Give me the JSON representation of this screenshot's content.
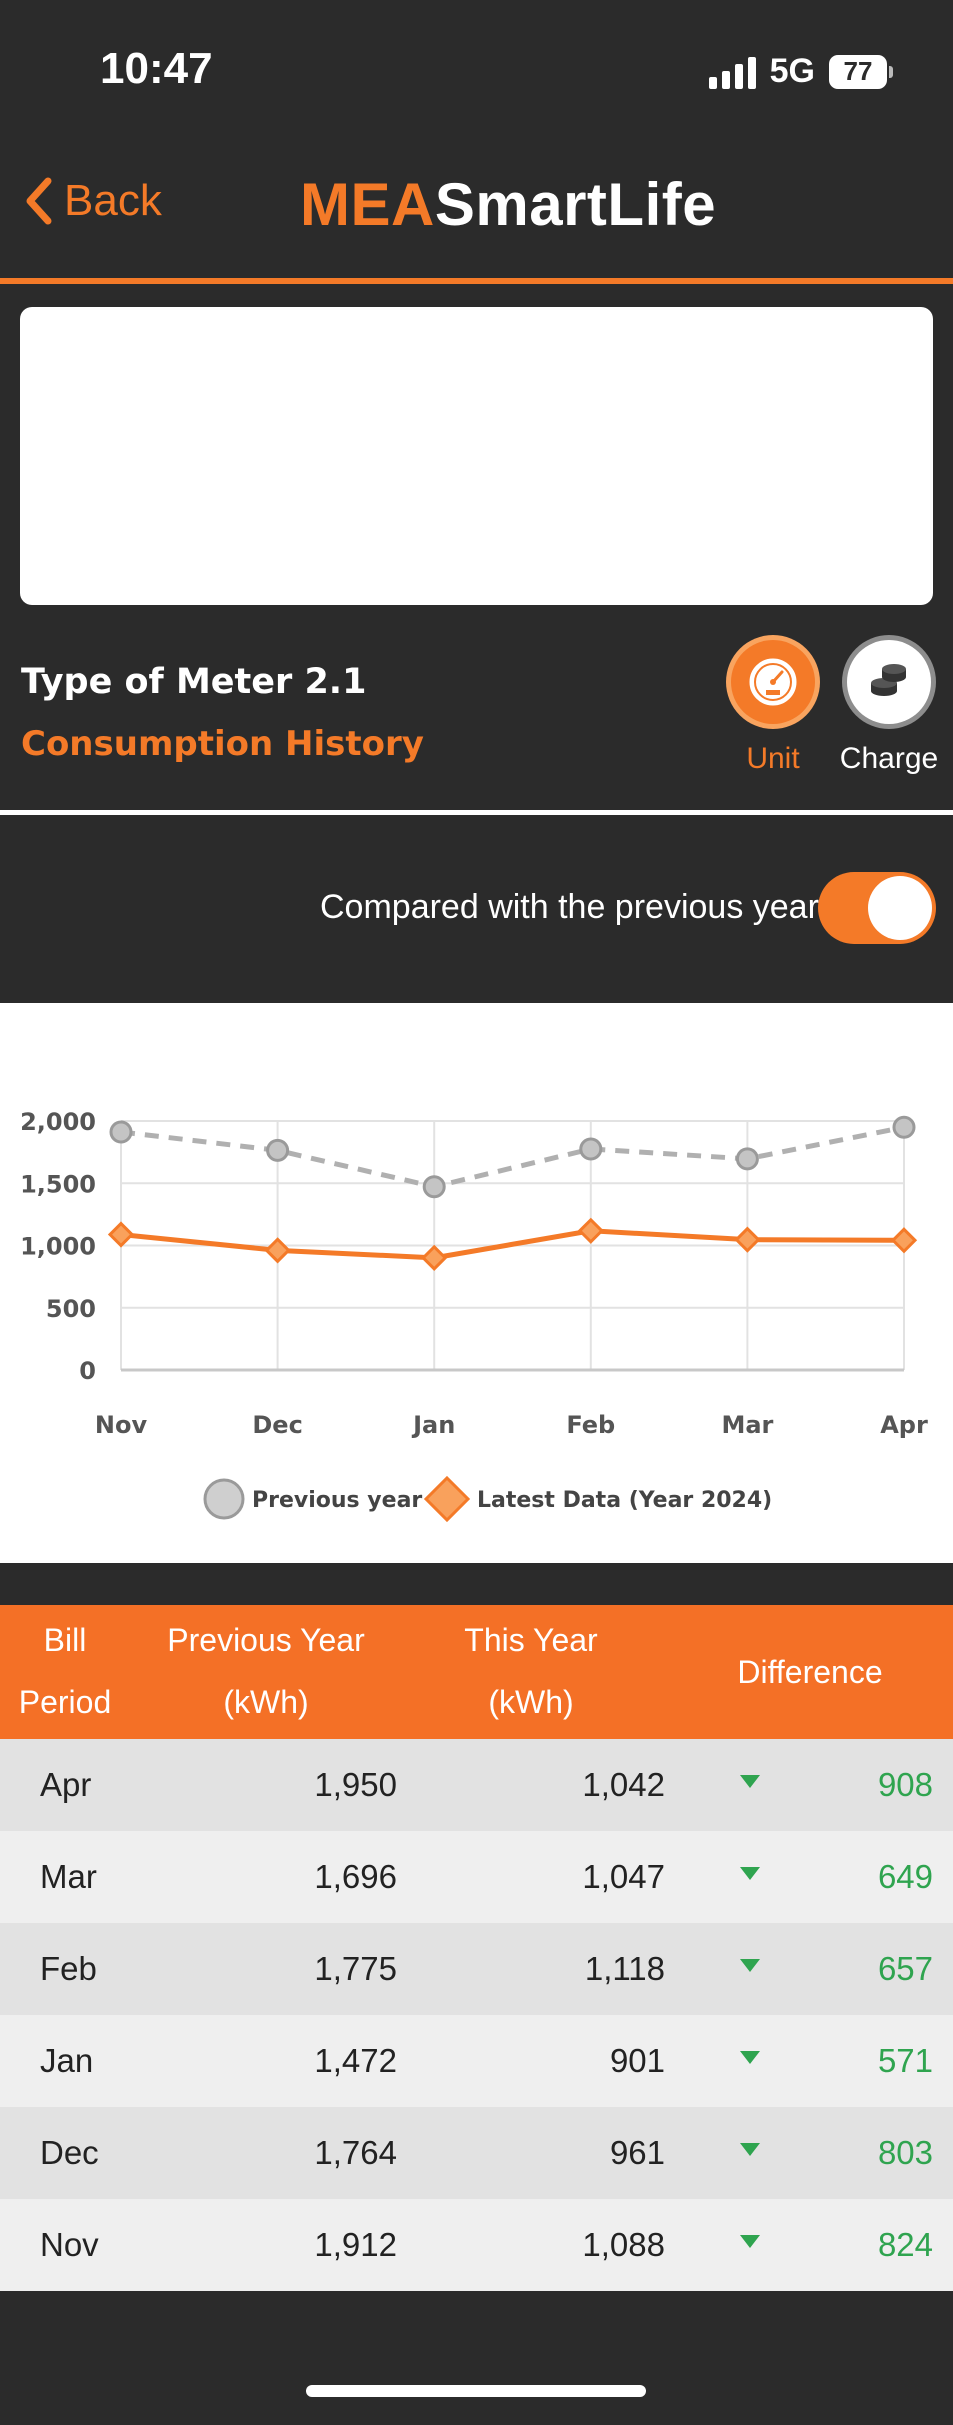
{
  "status_bar": {
    "time": "10:47",
    "network": "5G",
    "battery": "77"
  },
  "nav": {
    "back_label": "Back",
    "brand_part1": "MEA",
    "brand_part2": "SmartLife"
  },
  "meter": {
    "type_label": "Type of Meter 2.1",
    "section_title": "Consumption History",
    "unit_label": "Unit",
    "charge_label": "Charge"
  },
  "compare": {
    "label": "Compared with the previous year",
    "enabled": true
  },
  "chart_data": {
    "type": "line",
    "categories": [
      "Nov",
      "Dec",
      "Jan",
      "Feb",
      "Mar",
      "Apr"
    ],
    "series": [
      {
        "name": "Previous year",
        "values": [
          1912,
          1764,
          1472,
          1775,
          1696,
          1950
        ],
        "color": "#b0b0b0",
        "style": "dashed"
      },
      {
        "name": "Latest Data (Year 2024)",
        "values": [
          1088,
          961,
          901,
          1118,
          1047,
          1042
        ],
        "color": "#f47a28",
        "style": "solid"
      }
    ],
    "y_ticks": [
      "2,000",
      "1,500",
      "1,000",
      "500",
      "0"
    ],
    "ylim": [
      0,
      2000
    ],
    "grid": true,
    "legend": "bottom"
  },
  "table": {
    "headers": {
      "period_1": "Bill",
      "period_2": "Period",
      "prev_1": "Previous Year",
      "prev_2": "(kWh)",
      "this_1": "This Year",
      "this_2": "(kWh)",
      "diff": "Difference"
    },
    "rows": [
      {
        "period": "Apr",
        "prev": "1,950",
        "this": "1,042",
        "diff": "908"
      },
      {
        "period": "Mar",
        "prev": "1,696",
        "this": "1,047",
        "diff": "649"
      },
      {
        "period": "Feb",
        "prev": "1,775",
        "this": "1,118",
        "diff": "657"
      },
      {
        "period": "Jan",
        "prev": "1,472",
        "this": "901",
        "diff": "571"
      },
      {
        "period": "Dec",
        "prev": "1,764",
        "this": "961",
        "diff": "803"
      },
      {
        "period": "Nov",
        "prev": "1,912",
        "this": "1,088",
        "diff": "824"
      }
    ]
  },
  "colors": {
    "accent": "#f47a28",
    "background": "#2b2b2b",
    "positive": "#2fa44f"
  }
}
